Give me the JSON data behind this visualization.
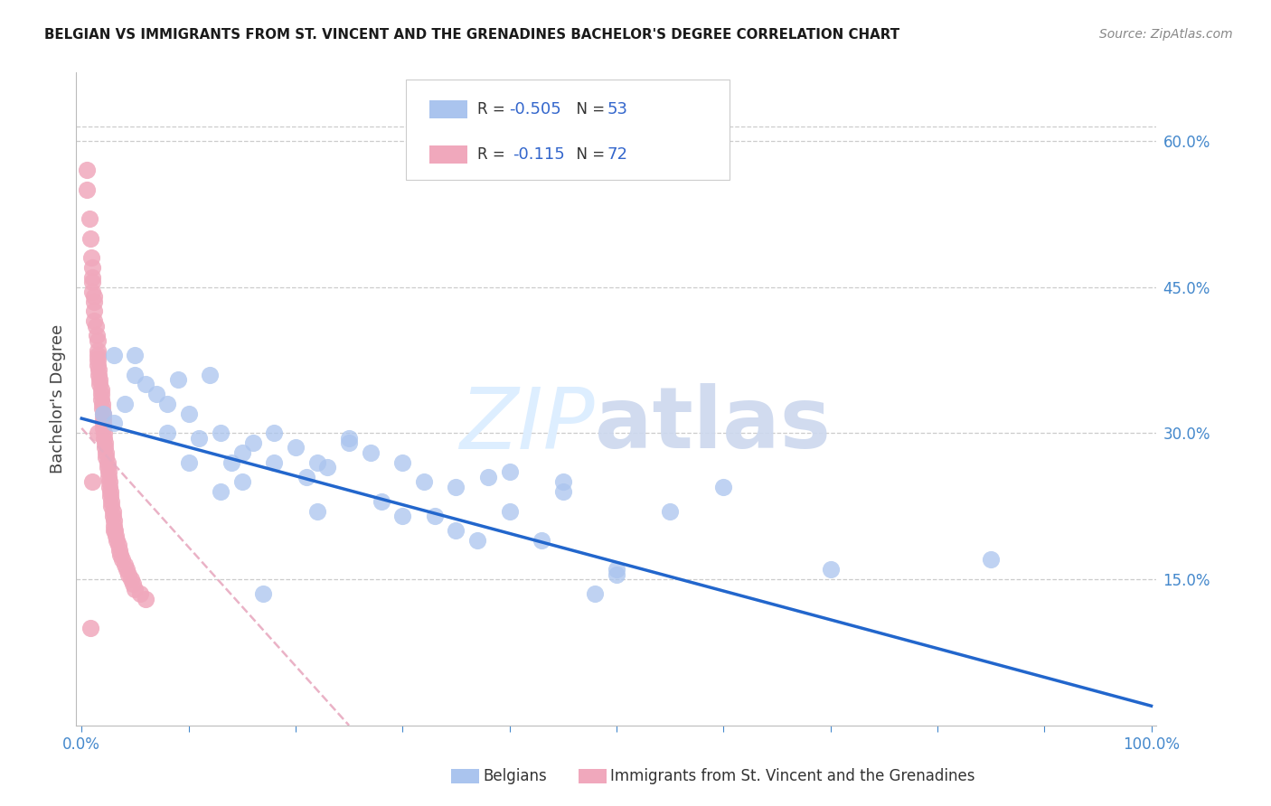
{
  "title": "BELGIAN VS IMMIGRANTS FROM ST. VINCENT AND THE GRENADINES BACHELOR'S DEGREE CORRELATION CHART",
  "source": "Source: ZipAtlas.com",
  "ylabel": "Bachelor's Degree",
  "ytick_labels": [
    "15.0%",
    "30.0%",
    "45.0%",
    "60.0%"
  ],
  "ytick_values": [
    0.15,
    0.3,
    0.45,
    0.6
  ],
  "xlim": [
    -0.005,
    1.005
  ],
  "ylim": [
    0.0,
    0.67
  ],
  "blue_scatter_color": "#aac4ee",
  "pink_scatter_color": "#f0a8bc",
  "blue_line_color": "#2266cc",
  "pink_line_color": "#e8aac0",
  "blue_line_x0": 0.0,
  "blue_line_y0": 0.315,
  "blue_line_x1": 1.0,
  "blue_line_y1": 0.02,
  "pink_line_x0": 0.0,
  "pink_line_y0": 0.305,
  "pink_line_x1": 0.25,
  "pink_line_y1": 0.0,
  "tick_color": "#4488cc",
  "grid_color": "#cccccc",
  "background_color": "#ffffff",
  "title_fontsize": 11,
  "legend_R1": "R = ",
  "legend_V1": "-0.505",
  "legend_N1_label": "N = ",
  "legend_N1": "53",
  "legend_R2": "R =  ",
  "legend_V2": "-0.115",
  "legend_N2_label": "N = ",
  "legend_N2": "72",
  "blue_x": [
    0.02,
    0.03,
    0.03,
    0.04,
    0.05,
    0.06,
    0.07,
    0.08,
    0.09,
    0.1,
    0.11,
    0.12,
    0.13,
    0.14,
    0.15,
    0.16,
    0.17,
    0.18,
    0.2,
    0.21,
    0.22,
    0.23,
    0.25,
    0.27,
    0.28,
    0.3,
    0.32,
    0.33,
    0.35,
    0.37,
    0.38,
    0.4,
    0.43,
    0.45,
    0.48,
    0.5,
    0.55,
    0.6,
    0.7,
    0.85,
    0.05,
    0.08,
    0.1,
    0.13,
    0.15,
    0.18,
    0.22,
    0.25,
    0.3,
    0.35,
    0.4,
    0.5,
    0.45
  ],
  "blue_y": [
    0.32,
    0.31,
    0.38,
    0.33,
    0.36,
    0.35,
    0.34,
    0.33,
    0.355,
    0.32,
    0.295,
    0.36,
    0.3,
    0.27,
    0.28,
    0.29,
    0.135,
    0.3,
    0.285,
    0.255,
    0.27,
    0.265,
    0.295,
    0.28,
    0.23,
    0.27,
    0.25,
    0.215,
    0.245,
    0.19,
    0.255,
    0.26,
    0.19,
    0.24,
    0.135,
    0.155,
    0.22,
    0.245,
    0.16,
    0.17,
    0.38,
    0.3,
    0.27,
    0.24,
    0.25,
    0.27,
    0.22,
    0.29,
    0.215,
    0.2,
    0.22,
    0.16,
    0.25
  ],
  "pink_x": [
    0.005,
    0.005,
    0.007,
    0.008,
    0.009,
    0.01,
    0.01,
    0.01,
    0.01,
    0.012,
    0.012,
    0.012,
    0.012,
    0.013,
    0.014,
    0.015,
    0.015,
    0.015,
    0.015,
    0.015,
    0.016,
    0.016,
    0.017,
    0.017,
    0.018,
    0.018,
    0.018,
    0.019,
    0.019,
    0.02,
    0.02,
    0.02,
    0.02,
    0.021,
    0.021,
    0.022,
    0.022,
    0.023,
    0.023,
    0.024,
    0.024,
    0.025,
    0.025,
    0.026,
    0.026,
    0.027,
    0.027,
    0.028,
    0.028,
    0.029,
    0.029,
    0.03,
    0.03,
    0.031,
    0.032,
    0.033,
    0.034,
    0.035,
    0.036,
    0.038,
    0.04,
    0.042,
    0.044,
    0.046,
    0.048,
    0.05,
    0.055,
    0.06,
    0.01,
    0.015,
    0.008,
    0.03
  ],
  "pink_y": [
    0.57,
    0.55,
    0.52,
    0.5,
    0.48,
    0.47,
    0.46,
    0.455,
    0.445,
    0.44,
    0.435,
    0.425,
    0.415,
    0.41,
    0.4,
    0.395,
    0.385,
    0.38,
    0.375,
    0.37,
    0.365,
    0.36,
    0.355,
    0.35,
    0.345,
    0.34,
    0.335,
    0.33,
    0.325,
    0.32,
    0.315,
    0.31,
    0.305,
    0.3,
    0.295,
    0.29,
    0.285,
    0.28,
    0.275,
    0.27,
    0.265,
    0.26,
    0.255,
    0.25,
    0.245,
    0.24,
    0.235,
    0.23,
    0.225,
    0.22,
    0.215,
    0.21,
    0.205,
    0.2,
    0.195,
    0.19,
    0.185,
    0.18,
    0.175,
    0.17,
    0.165,
    0.16,
    0.155,
    0.15,
    0.145,
    0.14,
    0.135,
    0.13,
    0.25,
    0.3,
    0.1,
    0.2
  ]
}
